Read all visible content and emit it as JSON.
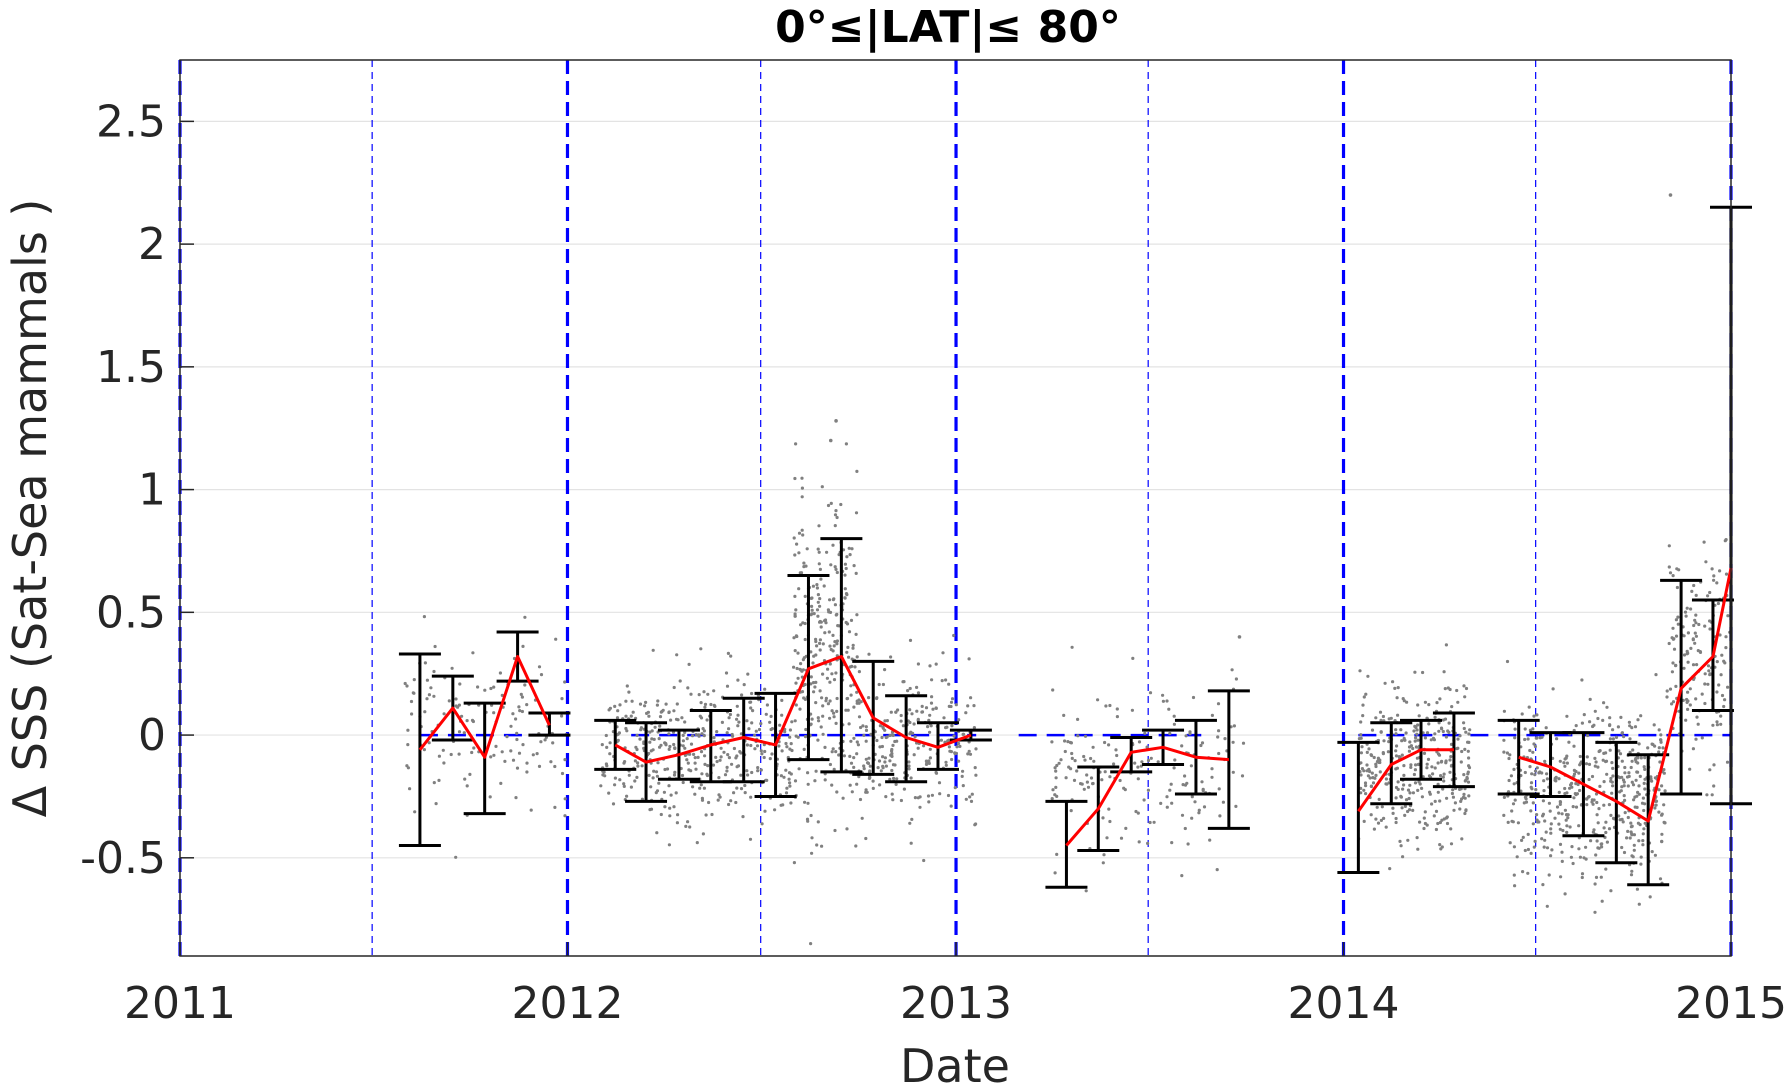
{
  "chart_data": {
    "type": "scatter",
    "title": "0°≤|LAT|≤ 80°",
    "xlabel": "Date",
    "ylabel": "Δ SSS (Sat-Sea mammals )",
    "xlim": [
      "2011-01-01",
      "2015-01-01"
    ],
    "ylim": [
      -0.9,
      2.75
    ],
    "x_ticks": [
      "2011",
      "2012",
      "2013",
      "2014",
      "2015"
    ],
    "y_ticks": [
      "-0.5",
      "0",
      "0.5",
      "1",
      "1.5",
      "2",
      "2.5"
    ],
    "grid": "horizontal",
    "colors": {
      "points": "#808080",
      "mean_line": "#ff0000",
      "error_bars": "#000000",
      "reference_lines": "#0000ff",
      "grid": "#e3e3e3"
    },
    "reference_lines": {
      "year_boundaries": [
        "2011-01-01",
        "2012-01-01",
        "2013-01-01",
        "2014-01-01",
        "2015-01-01"
      ],
      "mid_year": [
        "2011-07-01",
        "2012-07-01",
        "2013-07-01",
        "2014-07-01"
      ],
      "zero_segments": [
        [
          "2011-08-15",
          "2012-01-01"
        ],
        [
          "2012-03-01",
          "2013-01-20"
        ],
        [
          "2013-03-01",
          "2013-08-20"
        ],
        [
          "2014-01-15",
          "2015-01-01"
        ]
      ]
    },
    "mean_series": [
      {
        "x": "2011-08-15",
        "mean": -0.06,
        "lo": -0.45,
        "hi": 0.33
      },
      {
        "x": "2011-09-15",
        "mean": 0.11,
        "lo": -0.02,
        "hi": 0.24
      },
      {
        "x": "2011-10-15",
        "mean": -0.09,
        "lo": -0.32,
        "hi": 0.13
      },
      {
        "x": "2011-11-15",
        "mean": 0.32,
        "lo": 0.22,
        "hi": 0.42
      },
      {
        "x": "2011-12-15",
        "mean": 0.04,
        "lo": 0.0,
        "hi": 0.09
      },
      {
        "x": "2012-02-15",
        "mean": -0.04,
        "lo": -0.14,
        "hi": 0.06
      },
      {
        "x": "2012-03-15",
        "mean": -0.11,
        "lo": -0.27,
        "hi": 0.05
      },
      {
        "x": "2012-04-15",
        "mean": -0.08,
        "lo": -0.18,
        "hi": 0.02
      },
      {
        "x": "2012-05-15",
        "mean": -0.04,
        "lo": -0.19,
        "hi": 0.1
      },
      {
        "x": "2012-06-15",
        "mean": -0.01,
        "lo": -0.19,
        "hi": 0.15
      },
      {
        "x": "2012-07-15",
        "mean": -0.04,
        "lo": -0.25,
        "hi": 0.17
      },
      {
        "x": "2012-08-15",
        "mean": 0.27,
        "lo": -0.1,
        "hi": 0.65
      },
      {
        "x": "2012-09-15",
        "mean": 0.32,
        "lo": -0.15,
        "hi": 0.8
      },
      {
        "x": "2012-10-15",
        "mean": 0.07,
        "lo": -0.16,
        "hi": 0.3
      },
      {
        "x": "2012-11-15",
        "mean": -0.01,
        "lo": -0.19,
        "hi": 0.16
      },
      {
        "x": "2012-12-15",
        "mean": -0.05,
        "lo": -0.14,
        "hi": 0.05
      },
      {
        "x": "2013-01-15",
        "mean": 0.0,
        "lo": -0.02,
        "hi": 0.02
      },
      {
        "x": "2013-04-15",
        "mean": -0.45,
        "lo": -0.62,
        "hi": -0.27
      },
      {
        "x": "2013-05-15",
        "mean": -0.3,
        "lo": -0.47,
        "hi": -0.13
      },
      {
        "x": "2013-06-15",
        "mean": -0.07,
        "lo": -0.15,
        "hi": -0.01
      },
      {
        "x": "2013-07-15",
        "mean": -0.05,
        "lo": -0.12,
        "hi": 0.02
      },
      {
        "x": "2013-08-15",
        "mean": -0.09,
        "lo": -0.24,
        "hi": 0.06
      },
      {
        "x": "2013-09-15",
        "mean": -0.1,
        "lo": -0.38,
        "hi": 0.18
      },
      {
        "x": "2014-01-15",
        "mean": -0.31,
        "lo": -0.56,
        "hi": -0.03
      },
      {
        "x": "2014-02-15",
        "mean": -0.12,
        "lo": -0.28,
        "hi": 0.05
      },
      {
        "x": "2014-03-15",
        "mean": -0.06,
        "lo": -0.18,
        "hi": 0.06
      },
      {
        "x": "2014-04-15",
        "mean": -0.06,
        "lo": -0.21,
        "hi": 0.09
      },
      {
        "x": "2014-06-15",
        "mean": -0.09,
        "lo": -0.24,
        "hi": 0.06
      },
      {
        "x": "2014-07-15",
        "mean": -0.13,
        "lo": -0.25,
        "hi": 0.01
      },
      {
        "x": "2014-08-15",
        "mean": -0.2,
        "lo": -0.41,
        "hi": 0.01
      },
      {
        "x": "2014-09-15",
        "mean": -0.27,
        "lo": -0.52,
        "hi": -0.03
      },
      {
        "x": "2014-10-15",
        "mean": -0.35,
        "lo": -0.61,
        "hi": -0.08
      },
      {
        "x": "2014-11-15",
        "mean": 0.19,
        "lo": -0.24,
        "hi": 0.63
      },
      {
        "x": "2014-12-15",
        "mean": 0.32,
        "lo": 0.1,
        "hi": 0.55
      },
      {
        "x": "2015-01-01",
        "mean": 0.68,
        "lo": -0.28,
        "hi": 2.15
      }
    ],
    "scatter_clusters": [
      {
        "start": "2011-08-01",
        "end": "2011-12-31",
        "mean": 0.05,
        "sd": 0.17,
        "n": 140
      },
      {
        "start": "2012-02-01",
        "end": "2012-07-31",
        "mean": -0.06,
        "sd": 0.15,
        "n": 420
      },
      {
        "start": "2012-08-01",
        "end": "2012-09-30",
        "mean": 0.3,
        "sd": 0.35,
        "n": 320
      },
      {
        "start": "2012-10-01",
        "end": "2013-01-20",
        "mean": -0.02,
        "sd": 0.15,
        "n": 260
      },
      {
        "start": "2013-04-01",
        "end": "2013-09-30",
        "mean": -0.15,
        "sd": 0.18,
        "n": 180
      },
      {
        "start": "2014-01-15",
        "end": "2014-04-30",
        "mean": -0.1,
        "sd": 0.16,
        "n": 360
      },
      {
        "start": "2014-06-01",
        "end": "2014-10-31",
        "mean": -0.22,
        "sd": 0.17,
        "n": 520
      },
      {
        "start": "2014-11-01",
        "end": "2014-12-31",
        "mean": 0.3,
        "sd": 0.2,
        "n": 160
      }
    ],
    "outliers": [
      {
        "x": "2014-11-05",
        "y": 2.2
      },
      {
        "x": "2012-09-10",
        "y": 1.28
      },
      {
        "x": "2012-09-05",
        "y": 1.2
      },
      {
        "x": "2013-09-25",
        "y": 0.4
      }
    ]
  }
}
